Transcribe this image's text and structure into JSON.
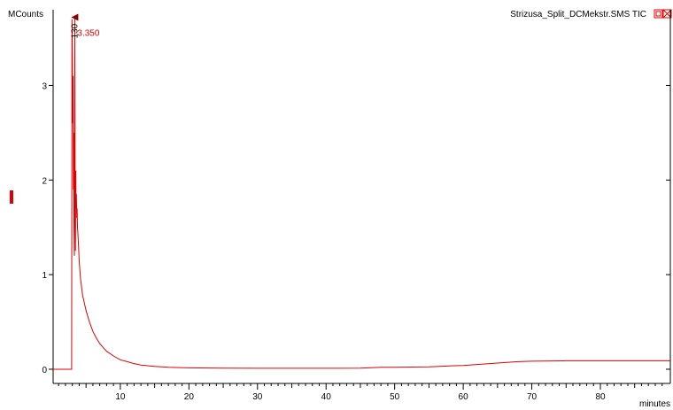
{
  "colors": {
    "trace": "#e00000",
    "axis": "#000000",
    "peak_marker": "#8b0000",
    "background": "#ffffff"
  },
  "icons": {
    "restore_icon": "restore-window-icon",
    "close_icon": "close-window-icon",
    "scale_marker": "red-bar-marker"
  },
  "chart_data": {
    "type": "line",
    "title": "Strizusa_Split_DCMekstr.SMS TIC",
    "ylabel": "MCounts",
    "xlabel": "minutes",
    "xlim": [
      0.2,
      90.2
    ],
    "ylim": [
      -0.15,
      3.8
    ],
    "xticks": [
      10,
      20,
      30,
      40,
      50,
      60,
      70,
      80
    ],
    "yticks": [
      0,
      1,
      2,
      3
    ],
    "grid": false,
    "legend": "none",
    "annotations": [
      {
        "label": "3.350",
        "x": 3.35,
        "y": 3.72
      },
      {
        "label": "130",
        "x": 3.35,
        "y": 3.72
      }
    ],
    "series": [
      {
        "x": [
          0.2,
          2.9,
          2.95,
          3.0,
          3.05,
          3.1,
          3.15,
          3.2,
          3.25,
          3.3,
          3.35,
          3.4,
          3.45,
          3.5,
          3.55,
          3.6,
          3.65,
          3.7,
          3.75,
          3.8,
          3.9,
          4.0,
          4.2,
          4.5,
          5.0,
          5.5,
          6.0,
          6.5,
          7.0,
          7.5,
          8.0,
          9.0,
          10.0,
          11.0,
          12.0,
          13.0,
          15.0,
          17.0,
          20.0,
          25.0,
          30.0,
          35.0,
          40.0,
          45.0,
          48.0,
          50.0,
          55.0,
          58.0,
          60.0,
          62.0,
          65.0,
          68.0,
          70.0,
          75.0,
          80.0,
          85.0,
          90.2
        ],
        "y": [
          0.0,
          0.0,
          3.7,
          3.3,
          2.6,
          3.1,
          1.9,
          2.5,
          1.5,
          1.2,
          3.72,
          2.1,
          1.25,
          2.1,
          1.7,
          1.85,
          1.6,
          1.7,
          1.5,
          1.45,
          1.3,
          1.15,
          0.95,
          0.78,
          0.62,
          0.5,
          0.4,
          0.33,
          0.27,
          0.23,
          0.19,
          0.14,
          0.1,
          0.08,
          0.06,
          0.045,
          0.03,
          0.02,
          0.015,
          0.012,
          0.01,
          0.01,
          0.01,
          0.012,
          0.02,
          0.02,
          0.025,
          0.035,
          0.04,
          0.05,
          0.065,
          0.08,
          0.085,
          0.09,
          0.09,
          0.09,
          0.09
        ]
      }
    ]
  }
}
